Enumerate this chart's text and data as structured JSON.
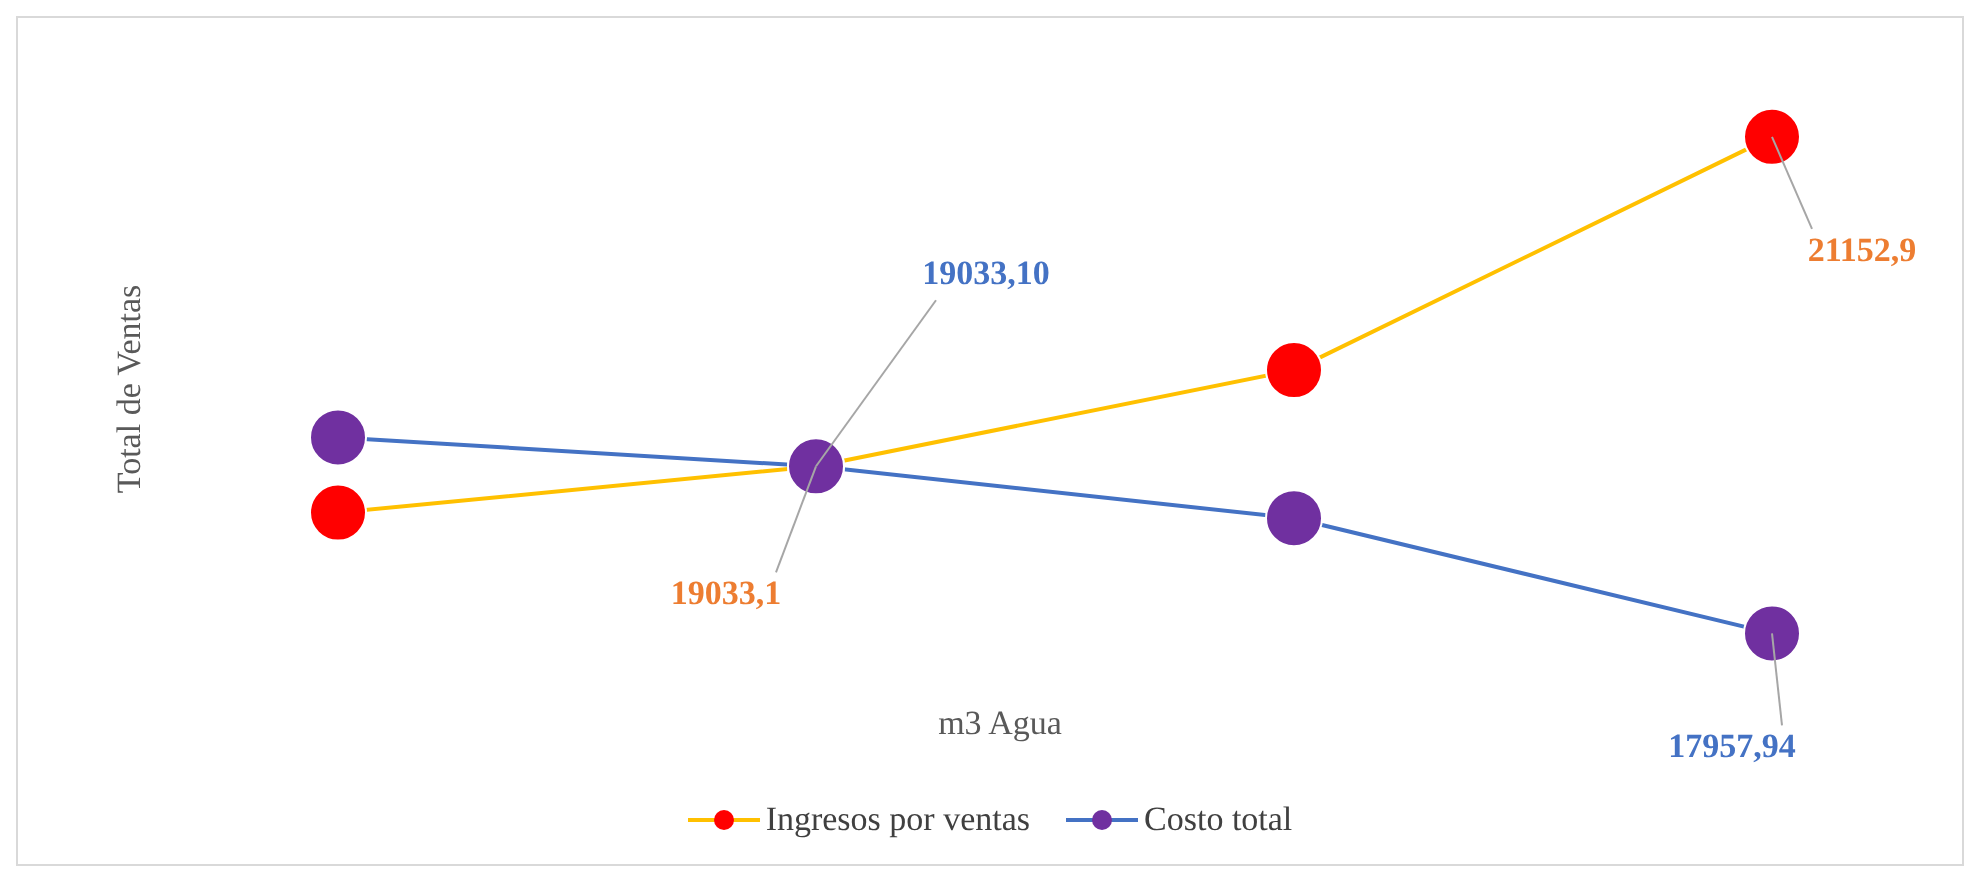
{
  "chart_data": {
    "type": "line",
    "xlabel": "m3 Agua",
    "ylabel": "Total  de Ventas",
    "categories": [
      null,
      null,
      null,
      null
    ],
    "series": [
      {
        "name": "Ingresos por ventas",
        "color": "#ffc000",
        "colors": [
          "#ff0000",
          "#ff0000",
          "#ff0000",
          "#ff0000"
        ],
        "values": [
          18735,
          19033.1,
          19652,
          21152.9
        ],
        "value_labels": [
          null,
          "19033,1",
          null,
          "21152,9"
        ]
      },
      {
        "name": "Costo total",
        "color": "#4472c4",
        "colors": [
          "#7030a0",
          "#7030a0",
          "#7030a0",
          "#7030a0"
        ],
        "values": [
          19219,
          19033.1,
          18699,
          17957.94
        ],
        "value_labels": [
          null,
          "19033,10",
          null,
          "17957,94"
        ]
      }
    ],
    "tick_labels": false,
    "grid": false,
    "legend": "bottom",
    "marker": "circle",
    "line_style": "solid"
  }
}
